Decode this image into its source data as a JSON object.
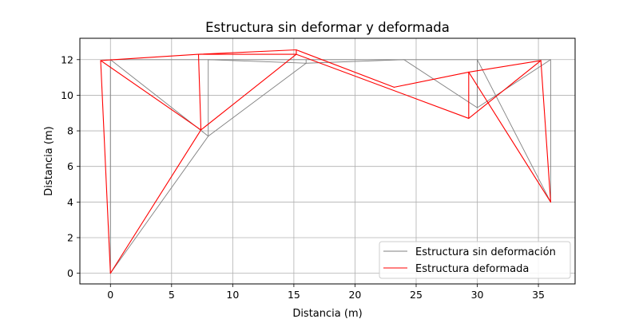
{
  "chart_data": {
    "type": "line",
    "title": "Estructura sin deformar y deformada",
    "xlabel": "Distancia (m)",
    "ylabel": "Distancia (m)",
    "xlim": [
      -2.5,
      38.0
    ],
    "ylim": [
      -0.6,
      13.2
    ],
    "xticks": [
      0,
      5,
      10,
      15,
      20,
      25,
      30,
      35
    ],
    "yticks": [
      0,
      2,
      4,
      6,
      8,
      10,
      12
    ],
    "grid": true,
    "legend_position": "lower-right",
    "series": [
      {
        "name": "Estructura sin deformación",
        "color": "#808080",
        "segments": [
          [
            [
              0,
              0
            ],
            [
              0,
              12
            ]
          ],
          [
            [
              0,
              12
            ],
            [
              36,
              12
            ]
          ],
          [
            [
              0,
              12
            ],
            [
              8,
              7.7
            ]
          ],
          [
            [
              0,
              0
            ],
            [
              8,
              7.7
            ]
          ],
          [
            [
              8,
              7.7
            ],
            [
              8,
              12
            ]
          ],
          [
            [
              8,
              7.7
            ],
            [
              16,
              11.8
            ]
          ],
          [
            [
              16,
              11.8
            ],
            [
              16,
              12
            ]
          ],
          [
            [
              8,
              12
            ],
            [
              16,
              11.8
            ]
          ],
          [
            [
              16,
              11.8
            ],
            [
              24,
              12
            ]
          ],
          [
            [
              24,
              12
            ],
            [
              30,
              9.3
            ]
          ],
          [
            [
              30,
              9.3
            ],
            [
              30,
              12
            ]
          ],
          [
            [
              30,
              9.3
            ],
            [
              36,
              12
            ]
          ],
          [
            [
              36,
              12
            ],
            [
              36,
              4
            ]
          ],
          [
            [
              30,
              12
            ],
            [
              36,
              4
            ]
          ]
        ]
      },
      {
        "name": "Estructura deformada",
        "color": "#ff0000",
        "segments": [
          [
            [
              0,
              0
            ],
            [
              -0.8,
              11.95
            ]
          ],
          [
            [
              -0.8,
              11.95
            ],
            [
              7.2,
              12.3
            ]
          ],
          [
            [
              7.2,
              12.3
            ],
            [
              15.2,
              12.55
            ]
          ],
          [
            [
              -0.8,
              11.95
            ],
            [
              7.4,
              8.05
            ]
          ],
          [
            [
              0,
              0
            ],
            [
              7.4,
              8.05
            ]
          ],
          [
            [
              7.4,
              8.05
            ],
            [
              7.2,
              12.3
            ]
          ],
          [
            [
              7.4,
              8.05
            ],
            [
              15.2,
              12.3
            ]
          ],
          [
            [
              15.2,
              12.3
            ],
            [
              15.2,
              12.55
            ]
          ],
          [
            [
              7.2,
              12.3
            ],
            [
              15.2,
              12.3
            ]
          ],
          [
            [
              15.2,
              12.55
            ],
            [
              23.2,
              10.45
            ]
          ],
          [
            [
              15.2,
              12.3
            ],
            [
              29.3,
              8.7
            ]
          ],
          [
            [
              23.2,
              10.45
            ],
            [
              29.3,
              11.3
            ]
          ],
          [
            [
              29.3,
              11.3
            ],
            [
              35.2,
              11.95
            ]
          ],
          [
            [
              29.3,
              8.7
            ],
            [
              29.3,
              11.3
            ]
          ],
          [
            [
              29.3,
              8.7
            ],
            [
              35.2,
              11.95
            ]
          ],
          [
            [
              35.2,
              11.95
            ],
            [
              36,
              4
            ]
          ],
          [
            [
              29.3,
              11.3
            ],
            [
              36,
              4
            ]
          ]
        ]
      }
    ]
  }
}
